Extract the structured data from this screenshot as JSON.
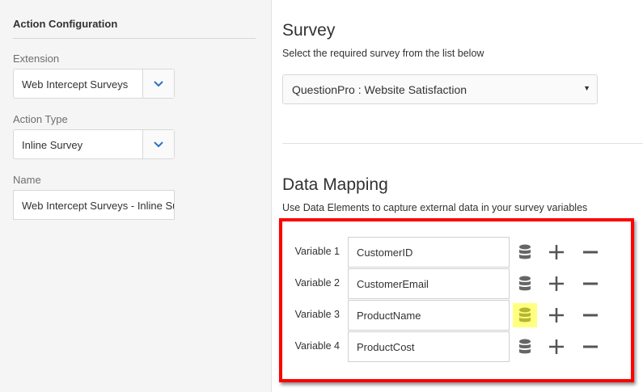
{
  "left": {
    "title": "Action Configuration",
    "extension": {
      "label": "Extension",
      "value": "Web Intercept Surveys"
    },
    "action_type": {
      "label": "Action Type",
      "value": "Inline Survey"
    },
    "name": {
      "label": "Name",
      "value": "Web Intercept Surveys - Inline Sur"
    }
  },
  "survey": {
    "title": "Survey",
    "subtitle": "Select the required survey from the list below",
    "selected": "QuestionPro : Website Satisfaction"
  },
  "mapping": {
    "title": "Data Mapping",
    "subtitle": "Use Data Elements to capture external data in your survey variables",
    "rows": [
      {
        "label": "Variable 1",
        "value": "CustomerID"
      },
      {
        "label": "Variable 2",
        "value": "CustomerEmail"
      },
      {
        "label": "Variable 3",
        "value": "ProductName",
        "highlighted": true
      },
      {
        "label": "Variable 4",
        "value": "ProductCost"
      }
    ]
  },
  "colors": {
    "accent": "#2d70c8",
    "highlight_box": "#ff0000",
    "highlight_icon": "#ffff80"
  }
}
